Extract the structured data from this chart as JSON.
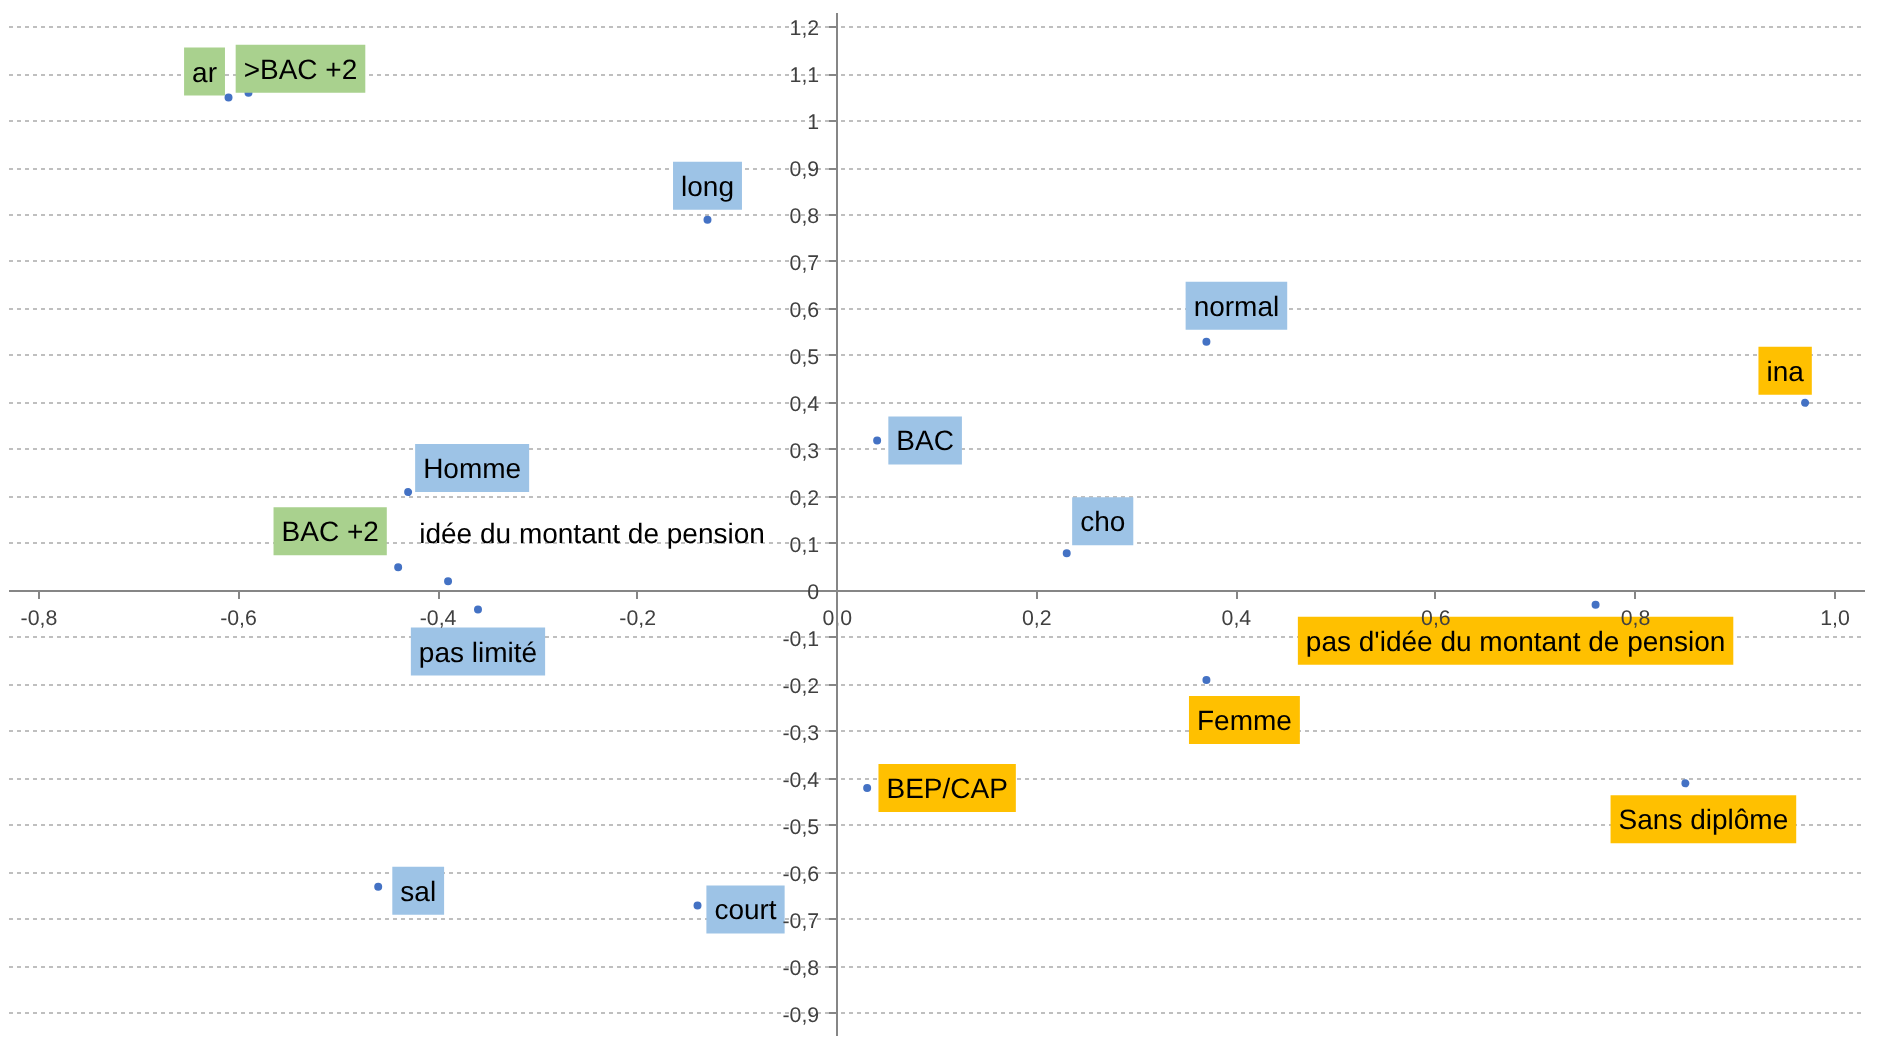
{
  "chart_data": {
    "type": "scatter",
    "marker": "circle",
    "grid": "y",
    "xlim": [
      -0.83,
      1.03
    ],
    "ylim": [
      -0.95,
      1.23
    ],
    "xticks": [
      {
        "value": -0.8,
        "label": "-0,8"
      },
      {
        "value": -0.6,
        "label": "-0,6"
      },
      {
        "value": -0.4,
        "label": "-0,4"
      },
      {
        "value": -0.2,
        "label": "-0,2"
      },
      {
        "value": 0,
        "label": "0,0"
      },
      {
        "value": 0.2,
        "label": "0,2"
      },
      {
        "value": 0.4,
        "label": "0,4"
      },
      {
        "value": 0.6,
        "label": "0,6"
      },
      {
        "value": 0.8,
        "label": "0,8"
      },
      {
        "value": 1.0,
        "label": "1,0"
      }
    ],
    "yticks": [
      {
        "value": -0.9,
        "label": "-0,9"
      },
      {
        "value": -0.8,
        "label": "-0,8"
      },
      {
        "value": -0.7,
        "label": "-0,7"
      },
      {
        "value": -0.6,
        "label": "-0,6"
      },
      {
        "value": -0.5,
        "label": "-0,5"
      },
      {
        "value": -0.4,
        "label": "-0,4"
      },
      {
        "value": -0.3,
        "label": "-0,3"
      },
      {
        "value": -0.2,
        "label": "-0,2"
      },
      {
        "value": -0.1,
        "label": "-0,1"
      },
      0,
      {
        "value": 0.1,
        "label": "0,1"
      },
      {
        "value": 0.2,
        "label": "0,2"
      },
      {
        "value": 0.3,
        "label": "0,3"
      },
      {
        "value": 0.4,
        "label": "0,4"
      },
      {
        "value": 0.5,
        "label": "0,5"
      },
      {
        "value": 0.6,
        "label": "0,6"
      },
      {
        "value": 0.7,
        "label": "0,7"
      },
      {
        "value": 0.8,
        "label": "0,8"
      },
      {
        "value": 0.9,
        "label": "0,9"
      },
      1,
      {
        "value": 1.1,
        "label": "1,1"
      },
      {
        "value": 1.2,
        "label": "1,2"
      }
    ],
    "series": [
      {
        "color": "#4472c4",
        "x": [
          -0.61,
          -0.59,
          -0.44,
          -0.13,
          0.37,
          0.04,
          -0.43,
          0.23,
          -0.36,
          -0.46,
          -0.14,
          0.97,
          0.76,
          0.37,
          0.03,
          0.85,
          -0.39
        ],
        "values": [
          1.05,
          1.06,
          0.05,
          0.79,
          0.53,
          0.32,
          0.21,
          0.08,
          -0.04,
          -0.63,
          -0.67,
          0.4,
          -0.03,
          -0.19,
          -0.42,
          -0.41,
          0.02
        ]
      }
    ],
    "annotations": [
      {
        "text": "ar",
        "x": -0.61,
        "y": 1.05
      },
      {
        "text": ">BAC +2",
        "x": -0.59,
        "y": 1.06
      },
      {
        "text": "BAC +2",
        "x": -0.44,
        "y": 0.05
      },
      {
        "text": "long",
        "x": -0.13,
        "y": 0.79
      },
      {
        "text": "normal",
        "x": 0.37,
        "y": 0.53
      },
      {
        "text": "BAC",
        "x": 0.04,
        "y": 0.32
      },
      {
        "text": "Homme",
        "x": -0.43,
        "y": 0.21
      },
      {
        "text": "cho",
        "x": 0.23,
        "y": 0.08
      },
      {
        "text": "pas limité",
        "x": -0.36,
        "y": -0.04
      },
      {
        "text": "sal",
        "x": -0.46,
        "y": -0.63
      },
      {
        "text": "court",
        "x": -0.14,
        "y": -0.67
      },
      {
        "text": "ina",
        "x": 0.97,
        "y": 0.4
      },
      {
        "text": "pas d'idée du montant de pension",
        "x": 0.76,
        "y": -0.03
      },
      {
        "text": "Femme",
        "x": 0.37,
        "y": -0.19
      },
      {
        "text": "BEP/CAP",
        "x": 0.03,
        "y": -0.42
      },
      {
        "text": "Sans diplôme",
        "x": 0.85,
        "y": -0.41
      },
      {
        "text": "idée du montant de pension",
        "x": -0.39,
        "y": 0.02
      }
    ]
  }
}
